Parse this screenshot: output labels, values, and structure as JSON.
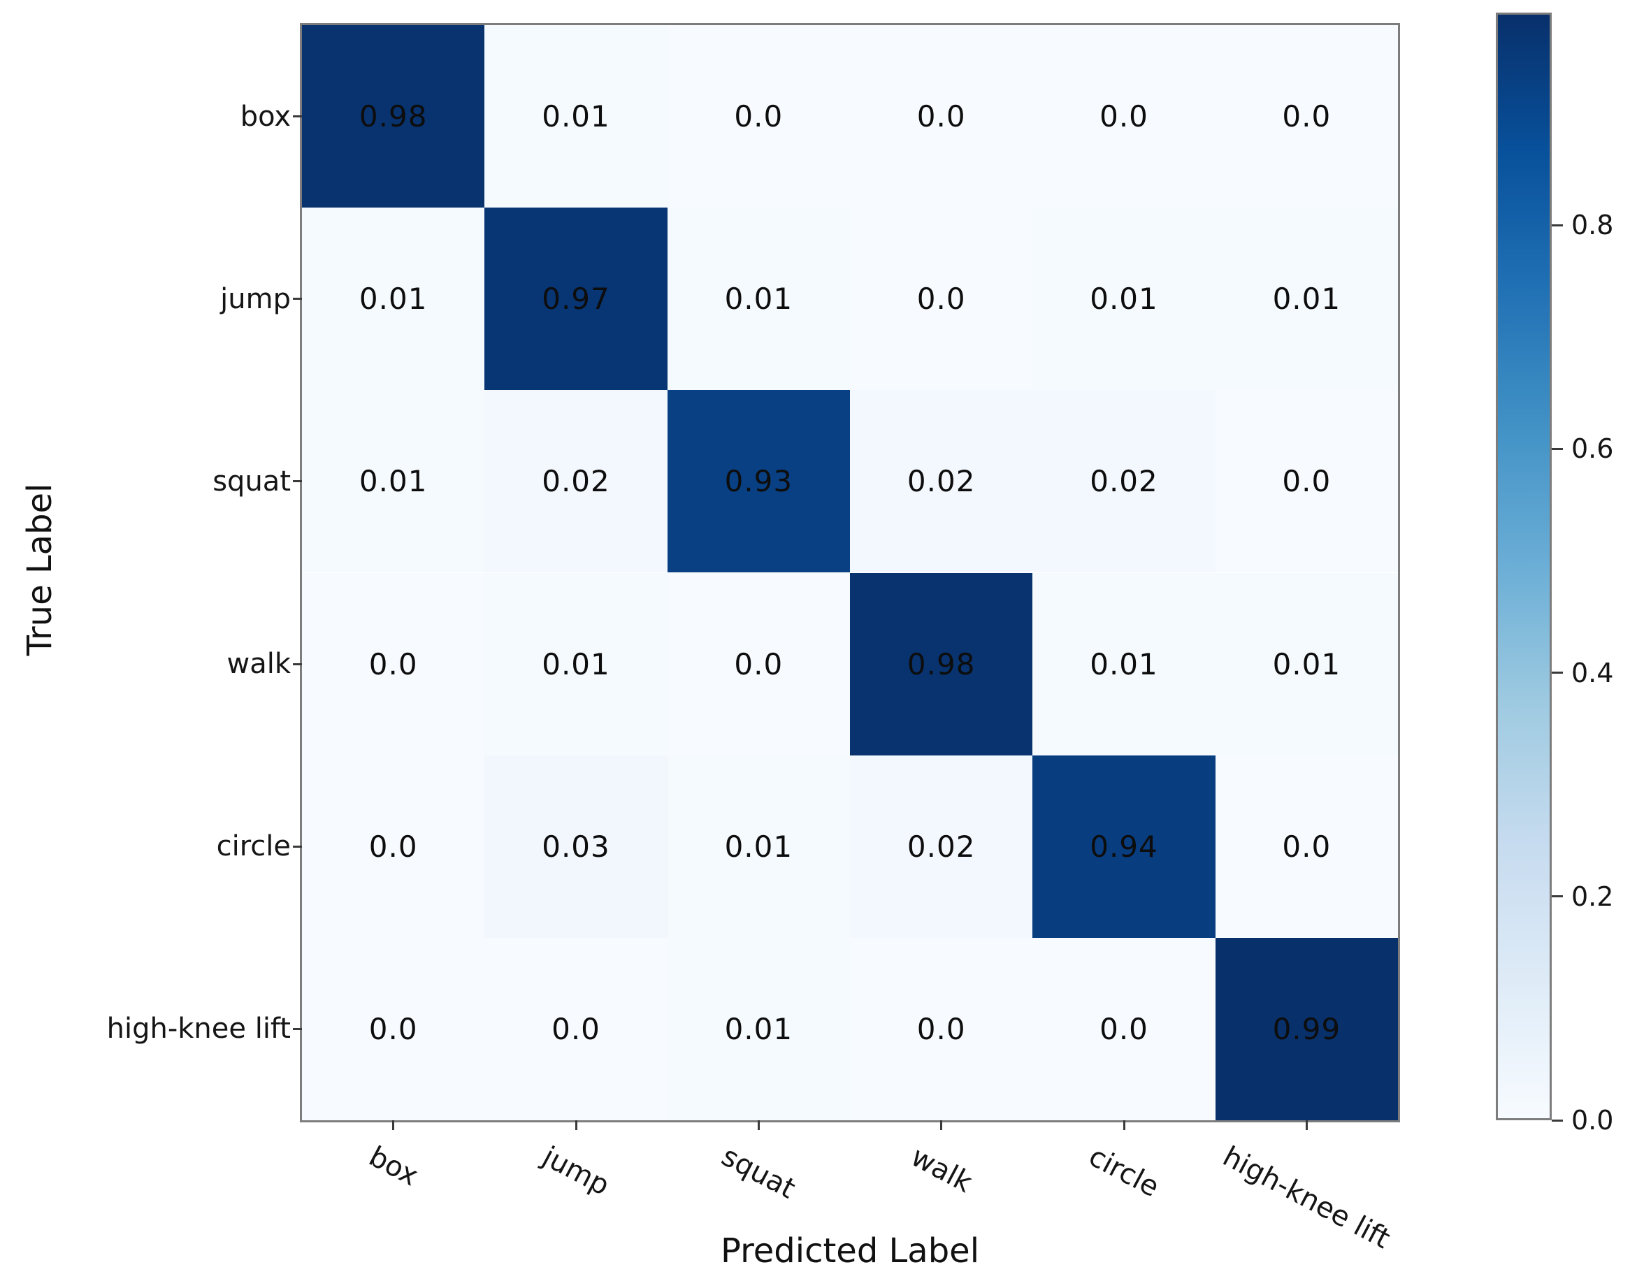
{
  "chart_data": {
    "type": "heatmap",
    "title": "",
    "xlabel": "Predicted Label",
    "ylabel": "True Label",
    "x_categories": [
      "box",
      "jump",
      "squat",
      "walk",
      "circle",
      "high-knee lift"
    ],
    "y_categories": [
      "box",
      "jump",
      "squat",
      "walk",
      "circle",
      "high-knee lift"
    ],
    "cell_labels": [
      [
        "0.98",
        "0.01",
        "0.0",
        "0.0",
        "0.0",
        "0.0"
      ],
      [
        "0.01",
        "0.97",
        "0.01",
        "0.0",
        "0.01",
        "0.01"
      ],
      [
        "0.01",
        "0.02",
        "0.93",
        "0.02",
        "0.02",
        "0.0"
      ],
      [
        "0.0",
        "0.01",
        "0.0",
        "0.98",
        "0.01",
        "0.01"
      ],
      [
        "0.0",
        "0.03",
        "0.01",
        "0.02",
        "0.94",
        "0.0"
      ],
      [
        "0.0",
        "0.0",
        "0.01",
        "0.0",
        "0.0",
        "0.99"
      ]
    ],
    "colorbar_ticks": [
      "0.0",
      "0.2",
      "0.4",
      "0.6",
      "0.8"
    ],
    "colormap_name": "Blues",
    "colormap": [
      "#f7fbff",
      "#deebf7",
      "#c6dbef",
      "#9ecae1",
      "#6baed6",
      "#4292c6",
      "#2171b5",
      "#08519c",
      "#08306b"
    ],
    "text_color": "#0d0d0d",
    "spine_color": "#7d7d7d",
    "colorbar_position": "right",
    "grid": false,
    "x_tick_rotation_deg": -28,
    "vmin": 0.0
  }
}
